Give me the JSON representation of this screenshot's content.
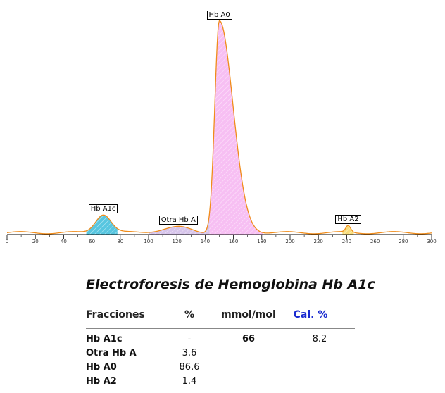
{
  "chart_data": {
    "type": "area",
    "title": "",
    "xlabel": "",
    "ylabel": "",
    "xlim": [
      0,
      300
    ],
    "x_ticks": [
      0,
      20,
      40,
      60,
      80,
      100,
      120,
      140,
      160,
      180,
      200,
      220,
      240,
      260,
      280,
      300
    ],
    "grid": false,
    "peaks": [
      {
        "name": "Hb A1c",
        "center": 68,
        "start": 56,
        "end": 78,
        "height": 6.0,
        "color": "#1fb3d6"
      },
      {
        "name": "Otra Hb A",
        "center": 121,
        "start": 100,
        "end": 143,
        "height": 1.7,
        "color": "#c9b2e4"
      },
      {
        "name": "Hb A0",
        "center": 150,
        "start": 143,
        "end": 181,
        "height": 68.0,
        "color": "#f4a9ef"
      },
      {
        "name": "Hb A2",
        "center": 241,
        "start": 237,
        "end": 245,
        "height": 2.1,
        "color": "#f5d250"
      }
    ],
    "trace_color": "#f08c1a"
  },
  "report": {
    "title": "Electroforesis de Hemoglobina Hb A1c",
    "headers": {
      "fraction": "Fracciones",
      "percent": "%",
      "mmol": "mmol/mol",
      "cal": "Cal. %"
    },
    "header_cal_color": "#1a2bd0",
    "rows": [
      {
        "name": "Hb A1c",
        "percent": "-",
        "mmol": "66",
        "cal": "8.2"
      },
      {
        "name": "Otra Hb A",
        "percent": "3.6",
        "mmol": "",
        "cal": ""
      },
      {
        "name": "Hb A0",
        "percent": "86.6",
        "mmol": "",
        "cal": ""
      },
      {
        "name": "Hb A2",
        "percent": "1.4",
        "mmol": "",
        "cal": ""
      }
    ]
  }
}
